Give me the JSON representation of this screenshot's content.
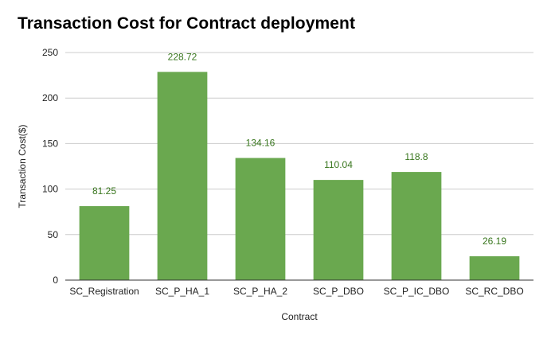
{
  "chart_data": {
    "type": "bar",
    "title": "Transaction Cost for Contract deployment",
    "xlabel": "Contract",
    "ylabel": "Transaction Cost($)",
    "categories": [
      "SC_Registration",
      "SC_P_HA_1",
      "SC_P_HA_2",
      "SC_P_DBO",
      "SC_P_IC_DBO",
      "SC_RC_DBO"
    ],
    "values": [
      81.25,
      228.72,
      134.16,
      110.04,
      118.8,
      26.19
    ],
    "data_labels": [
      "81.25",
      "228.72",
      "134.16",
      "110.04",
      "118.8",
      "26.19"
    ],
    "ylim": [
      0,
      250
    ],
    "yticks": [
      0,
      50,
      100,
      150,
      200,
      250
    ],
    "grid": true,
    "legend": "none",
    "colors": {
      "bar": "#6aa84f",
      "data_label": "#38761d",
      "grid": "#cccccc",
      "axis": "#333333"
    }
  }
}
